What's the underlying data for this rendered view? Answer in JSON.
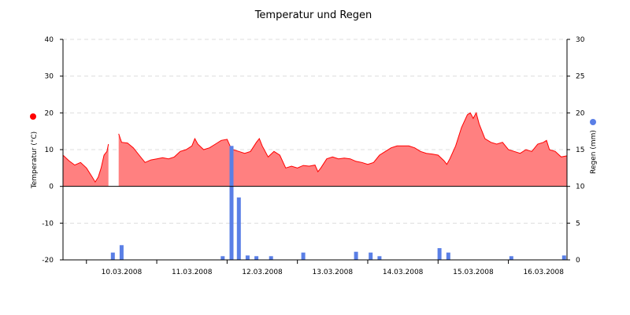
{
  "chart_data": {
    "type": "area+bar",
    "title": "Temperatur und Regen",
    "left_axis": {
      "label": "Temperatur (°C)",
      "ylim": [
        -20,
        40
      ],
      "ticks": [
        -20,
        -10,
        0,
        10,
        20,
        30,
        40
      ],
      "color": "#ff0000"
    },
    "right_axis": {
      "label": "Regen (mm)",
      "ylim": [
        0,
        30
      ],
      "ticks": [
        0,
        5,
        10,
        15,
        20,
        25,
        30
      ],
      "color": "#5a7fe6"
    },
    "x_axis": {
      "start": "2008-03-09T16:00",
      "end": "2008-03-16T20:00",
      "tick_labels": [
        "10.03.2008",
        "11.03.2008",
        "12.03.2008",
        "13.03.2008",
        "14.03.2008",
        "15.03.2008",
        "16.03.2008"
      ]
    },
    "grid": true,
    "temperature_series": {
      "name": "Temperatur",
      "color": "#ff0000",
      "fill": "#ff8080",
      "segments": [
        [
          [
            "2008-03-09T16:00",
            8.5
          ],
          [
            "2008-03-09T18:00",
            7.0
          ],
          [
            "2008-03-09T20:00",
            5.8
          ],
          [
            "2008-03-09T22:00",
            6.5
          ],
          [
            "2008-03-10T00:00",
            5.0
          ],
          [
            "2008-03-10T02:00",
            2.5
          ],
          [
            "2008-03-10T03:00",
            1.2
          ],
          [
            "2008-03-10T04:00",
            2.5
          ],
          [
            "2008-03-10T05:00",
            5.0
          ],
          [
            "2008-03-10T06:00",
            8.5
          ],
          [
            "2008-03-10T07:00",
            9.5
          ],
          [
            "2008-03-10T07:30",
            11.5
          ]
        ],
        [
          [
            "2008-03-10T11:00",
            14.3
          ],
          [
            "2008-03-10T12:00",
            12.0
          ],
          [
            "2008-03-10T14:00",
            11.8
          ],
          [
            "2008-03-10T16:00",
            10.5
          ],
          [
            "2008-03-10T18:00",
            8.5
          ],
          [
            "2008-03-10T20:00",
            6.5
          ],
          [
            "2008-03-10T22:00",
            7.2
          ],
          [
            "2008-03-11T00:00",
            7.5
          ],
          [
            "2008-03-11T02:00",
            7.8
          ],
          [
            "2008-03-11T04:00",
            7.5
          ],
          [
            "2008-03-11T06:00",
            8.0
          ],
          [
            "2008-03-11T08:00",
            9.5
          ],
          [
            "2008-03-11T10:00",
            10.0
          ],
          [
            "2008-03-11T12:00",
            11.0
          ],
          [
            "2008-03-11T13:00",
            13.0
          ],
          [
            "2008-03-11T14:00",
            11.5
          ],
          [
            "2008-03-11T16:00",
            10.0
          ],
          [
            "2008-03-11T18:00",
            10.5
          ],
          [
            "2008-03-11T20:00",
            11.5
          ],
          [
            "2008-03-11T22:00",
            12.5
          ],
          [
            "2008-03-12T00:00",
            12.8
          ],
          [
            "2008-03-12T01:00",
            11.0
          ],
          [
            "2008-03-12T02:00",
            10.0
          ],
          [
            "2008-03-12T04:00",
            9.5
          ],
          [
            "2008-03-12T06:00",
            9.0
          ],
          [
            "2008-03-12T08:00",
            9.5
          ],
          [
            "2008-03-12T10:00",
            12.0
          ],
          [
            "2008-03-12T11:00",
            13.0
          ],
          [
            "2008-03-12T12:00",
            11.0
          ],
          [
            "2008-03-12T14:00",
            8.0
          ],
          [
            "2008-03-12T16:00",
            9.5
          ],
          [
            "2008-03-12T18:00",
            8.5
          ],
          [
            "2008-03-12T20:00",
            5.0
          ],
          [
            "2008-03-12T22:00",
            5.5
          ],
          [
            "2008-03-13T00:00",
            5.0
          ],
          [
            "2008-03-13T02:00",
            5.7
          ],
          [
            "2008-03-13T04:00",
            5.5
          ],
          [
            "2008-03-13T06:00",
            5.8
          ],
          [
            "2008-03-13T07:00",
            4.0
          ],
          [
            "2008-03-13T08:00",
            5.0
          ],
          [
            "2008-03-13T10:00",
            7.5
          ],
          [
            "2008-03-13T12:00",
            8.0
          ],
          [
            "2008-03-13T14:00",
            7.5
          ],
          [
            "2008-03-13T16:00",
            7.7
          ],
          [
            "2008-03-13T18:00",
            7.5
          ],
          [
            "2008-03-13T20:00",
            6.8
          ],
          [
            "2008-03-13T22:00",
            6.5
          ],
          [
            "2008-03-14T00:00",
            6.0
          ],
          [
            "2008-03-14T02:00",
            6.5
          ],
          [
            "2008-03-14T04:00",
            8.5
          ],
          [
            "2008-03-14T06:00",
            9.5
          ],
          [
            "2008-03-14T08:00",
            10.5
          ],
          [
            "2008-03-14T10:00",
            11.0
          ],
          [
            "2008-03-14T12:00",
            11.0
          ],
          [
            "2008-03-14T14:00",
            11.0
          ],
          [
            "2008-03-14T16:00",
            10.5
          ],
          [
            "2008-03-14T18:00",
            9.5
          ],
          [
            "2008-03-14T20:00",
            9.0
          ],
          [
            "2008-03-14T22:00",
            8.8
          ],
          [
            "2008-03-15T00:00",
            8.5
          ],
          [
            "2008-03-15T02:00",
            7.0
          ],
          [
            "2008-03-15T03:00",
            6.0
          ],
          [
            "2008-03-15T04:00",
            7.5
          ],
          [
            "2008-03-15T06:00",
            11.0
          ],
          [
            "2008-03-15T08:00",
            16.0
          ],
          [
            "2008-03-15T10:00",
            19.5
          ],
          [
            "2008-03-15T11:00",
            20.0
          ],
          [
            "2008-03-15T12:00",
            18.5
          ],
          [
            "2008-03-15T13:00",
            20.0
          ],
          [
            "2008-03-15T14:00",
            17.0
          ],
          [
            "2008-03-15T16:00",
            13.0
          ],
          [
            "2008-03-15T18:00",
            12.0
          ],
          [
            "2008-03-15T20:00",
            11.5
          ],
          [
            "2008-03-15T22:00",
            12.0
          ],
          [
            "2008-03-16T00:00",
            10.0
          ],
          [
            "2008-03-16T02:00",
            9.5
          ],
          [
            "2008-03-16T04:00",
            9.0
          ],
          [
            "2008-03-16T06:00",
            10.0
          ],
          [
            "2008-03-16T08:00",
            9.5
          ],
          [
            "2008-03-16T10:00",
            11.5
          ],
          [
            "2008-03-16T12:00",
            12.0
          ],
          [
            "2008-03-16T13:00",
            12.5
          ],
          [
            "2008-03-16T14:00",
            10.0
          ],
          [
            "2008-03-16T16:00",
            9.5
          ],
          [
            "2008-03-16T18:00",
            8.0
          ],
          [
            "2008-03-16T20:00",
            8.3
          ]
        ]
      ]
    },
    "rain_series": {
      "name": "Regen",
      "color": "#5a7fe6",
      "bars": [
        [
          "2008-03-10T09:00",
          1.0
        ],
        [
          "2008-03-10T12:00",
          2.0
        ],
        [
          "2008-03-11T22:30",
          0.5
        ],
        [
          "2008-03-12T01:30",
          15.5
        ],
        [
          "2008-03-12T04:00",
          8.5
        ],
        [
          "2008-03-12T07:00",
          0.6
        ],
        [
          "2008-03-12T10:00",
          0.5
        ],
        [
          "2008-03-12T15:00",
          0.5
        ],
        [
          "2008-03-13T02:00",
          1.0
        ],
        [
          "2008-03-13T20:00",
          1.1
        ],
        [
          "2008-03-14T01:00",
          1.0
        ],
        [
          "2008-03-14T04:00",
          0.5
        ],
        [
          "2008-03-15T00:30",
          1.6
        ],
        [
          "2008-03-15T03:30",
          1.0
        ],
        [
          "2008-03-16T01:00",
          0.5
        ],
        [
          "2008-03-16T19:00",
          0.6
        ]
      ]
    }
  }
}
